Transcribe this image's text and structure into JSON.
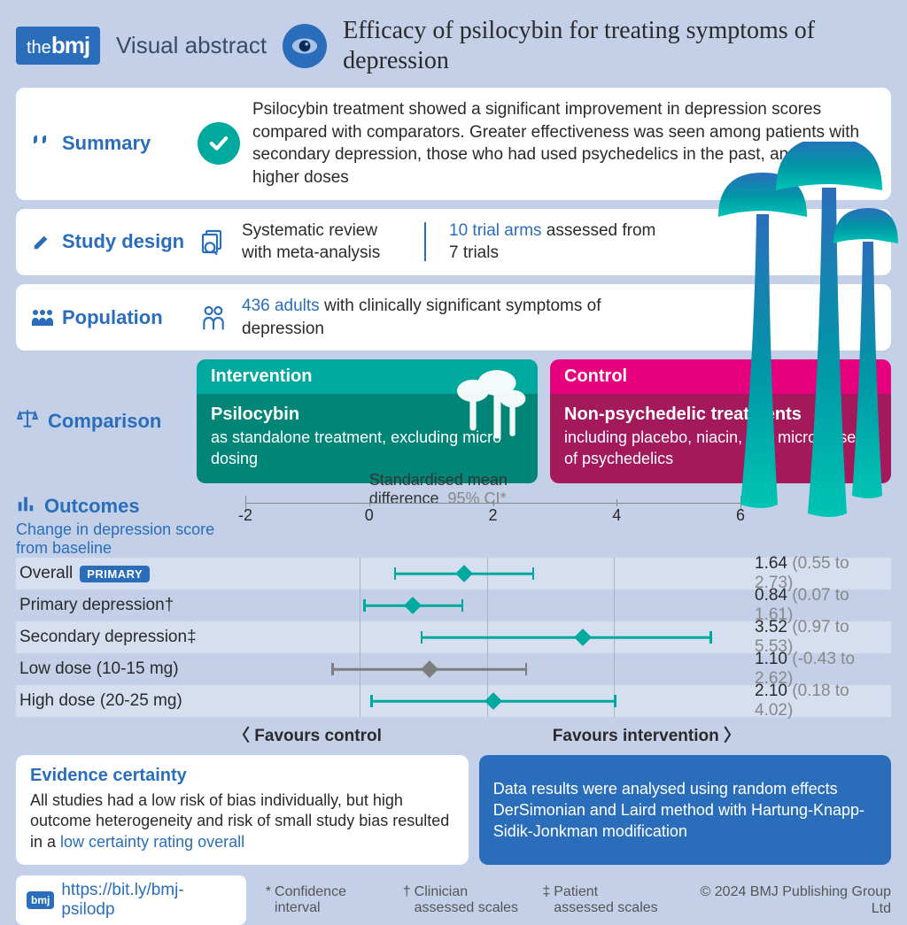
{
  "brand": {
    "the": "the",
    "bmj": "bmj"
  },
  "visual_abstract_label": "Visual abstract",
  "title": "Efficacy of psilocybin for treating symptoms of depression",
  "colors": {
    "bg": "#c3d0e8",
    "blue": "#2a6ebb",
    "teal_light": "#00a99d",
    "teal_dark": "#008577",
    "magenta_light": "#e6007e",
    "magenta_dark": "#a3195b",
    "gray": "#7d7d7d",
    "row_alt": "#d6dff0",
    "forest_teal": "#00a99d",
    "forest_gray": "#7d7d7d"
  },
  "summary": {
    "label": "Summary",
    "text": "Psilocybin treatment showed a significant improvement in depression scores compared with comparators. Greater effectiveness was seen among patients with secondary depression, those who had used psychedelics in the past, and with higher doses"
  },
  "study_design": {
    "label": "Study design",
    "left": "Systematic review with meta-analysis",
    "right_hl": "10 trial arms",
    "right_rest": " assessed from 7 trials"
  },
  "population": {
    "label": "Population",
    "hl": "436 adults",
    "rest": " with clinically significant symptoms of depression"
  },
  "comparison": {
    "label": "Comparison",
    "intervention": {
      "head": "Intervention",
      "title": "Psilocybin",
      "body": "as standalone treatment, excluding micro dosing"
    },
    "control": {
      "head": "Control",
      "title": "Non-psychedelic treatments",
      "body": "including placebo, niacin, and micro doses of psychedelics"
    }
  },
  "outcomes": {
    "label": "Outcomes",
    "sub": "Change in depression score from baseline",
    "axis_title": "Standardised mean difference",
    "ci_label": "95% CI*",
    "xmin": -2,
    "xmax": 6,
    "ticks": [
      -2,
      0,
      2,
      4,
      6
    ],
    "gridlines": [
      0,
      2,
      4
    ],
    "primary_badge": "PRIMARY",
    "rows": [
      {
        "name": "Overall",
        "primary": true,
        "mean": 1.64,
        "lo": 0.55,
        "hi": 2.73,
        "color": "teal",
        "display": "1.64",
        "ci_display": "(0.55 to 2.73)"
      },
      {
        "name": "Primary depression†",
        "primary": false,
        "mean": 0.84,
        "lo": 0.07,
        "hi": 1.61,
        "color": "teal",
        "display": "0.84",
        "ci_display": "(0.07 to 1.61)"
      },
      {
        "name": "Secondary depression‡",
        "primary": false,
        "mean": 3.52,
        "lo": 0.97,
        "hi": 5.53,
        "color": "teal",
        "display": "3.52",
        "ci_display": "(0.97 to 5.53)"
      },
      {
        "name": "Low dose (10-15 mg)",
        "primary": false,
        "mean": 1.1,
        "lo": -0.43,
        "hi": 2.62,
        "color": "gray",
        "display": "1.10",
        "ci_display": "(-0.43 to 2.62)"
      },
      {
        "name": "High dose (20-25 mg)",
        "primary": false,
        "mean": 2.1,
        "lo": 0.18,
        "hi": 4.02,
        "color": "teal",
        "display": "2.10",
        "ci_display": "(0.18 to 4.02)"
      }
    ],
    "favours_control": "Favours control",
    "favours_intervention": "Favours intervention"
  },
  "evidence": {
    "head": "Evidence certainty",
    "text": "All studies had a low risk of bias individually, but high outcome heterogeneity and risk of small study bias resulted in a ",
    "hl": "low certainty rating overall"
  },
  "method_box": "Data results were analysed using random effects DerSimonian and Laird method with Hartung-Knapp-Sidik-Jonkman modification",
  "link": "https://bit.ly/bmj-psilodp",
  "footnotes": [
    {
      "sym": "*",
      "text": "Confidence interval"
    },
    {
      "sym": "†",
      "text": "Clinician assessed scales"
    },
    {
      "sym": "‡",
      "text": "Patient assessed scales"
    }
  ],
  "copyright": "© 2024 BMJ Publishing Group Ltd"
}
